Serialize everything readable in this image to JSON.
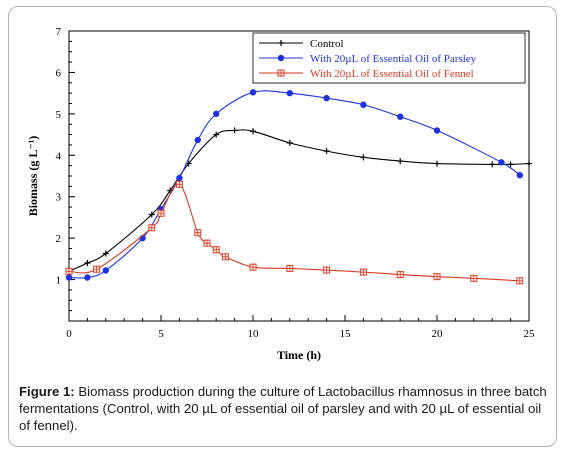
{
  "caption": {
    "label": "Figure 1:",
    "text": " Biomass production during the culture of Lactobacillus rhamnosus in three batch fermentations (Control, with 20 µL of essential oil of parsley and with 20 µL of essential oil of fennel)."
  },
  "chart_data": {
    "type": "line",
    "title": "",
    "xlabel": "Time (h)",
    "ylabel": "Biomass (g L⁻¹)",
    "xlim": [
      0,
      25
    ],
    "ylim": [
      0,
      7
    ],
    "xticks": [
      "0",
      "5",
      "10",
      "15",
      "20",
      "25"
    ],
    "yticks": [
      "1",
      "2",
      "3",
      "4",
      "5",
      "6",
      "7"
    ],
    "grid": false,
    "legend_position": "top-right",
    "series": [
      {
        "name": "Control",
        "color": "#000000",
        "marker": "plus",
        "x": [
          0,
          1,
          2,
          4.5,
          5.5,
          6.5,
          8,
          9,
          10,
          12,
          14,
          16,
          18,
          20,
          23,
          24,
          25
        ],
        "y": [
          1.2,
          1.4,
          1.63,
          2.57,
          3.15,
          3.8,
          4.5,
          4.6,
          4.58,
          4.3,
          4.1,
          3.95,
          3.86,
          3.8,
          3.78,
          3.78,
          3.8
        ]
      },
      {
        "name": "With 20µL of Essential Oil of Parsley",
        "color": "#1e33e0",
        "marker": "circle",
        "x": [
          0,
          1,
          2,
          4,
          5,
          6,
          7,
          8,
          10,
          12,
          14,
          16,
          18,
          20,
          23.5,
          24.5
        ],
        "y": [
          1.05,
          1.05,
          1.22,
          2.0,
          2.7,
          3.45,
          4.37,
          5.0,
          5.52,
          5.5,
          5.38,
          5.22,
          4.93,
          4.6,
          3.83,
          3.52
        ]
      },
      {
        "name": "With 20µL of Essential Oil of Fennel",
        "color": "#d9381e",
        "marker": "boxed-cross",
        "x": [
          0,
          1.5,
          4.5,
          5,
          6,
          7,
          7.5,
          8,
          8.5,
          10,
          12,
          14,
          16,
          18,
          20,
          22,
          24.5
        ],
        "y": [
          1.2,
          1.25,
          2.25,
          2.6,
          3.3,
          2.13,
          1.88,
          1.72,
          1.55,
          1.3,
          1.27,
          1.23,
          1.18,
          1.12,
          1.07,
          1.03,
          0.97
        ]
      }
    ]
  }
}
